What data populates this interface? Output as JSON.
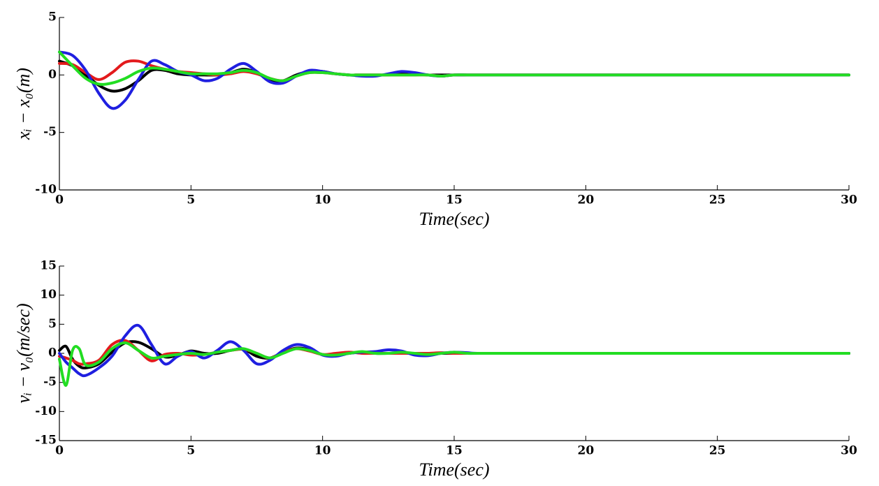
{
  "chart_data": [
    {
      "type": "line",
      "xlabel": "Time(sec)",
      "ylabel": "xᵢ − x₀(m)",
      "x": [
        0,
        0.5,
        1,
        1.5,
        2,
        2.5,
        3,
        3.5,
        4,
        4.5,
        5,
        5.5,
        6,
        6.5,
        7,
        7.5,
        8,
        8.5,
        9,
        9.5,
        10,
        10.5,
        11,
        11.5,
        12,
        12.5,
        13,
        13.5,
        14,
        14.5,
        15,
        15.5,
        16,
        18,
        20,
        22,
        24,
        26,
        28,
        30
      ],
      "xlim": [
        0,
        30
      ],
      "ylim": [
        -10,
        5
      ],
      "xticks": [
        0,
        5,
        10,
        15,
        20,
        25,
        30
      ],
      "yticks": [
        -10,
        -5,
        0,
        5
      ],
      "series": [
        {
          "color": "#000000",
          "values": [
            1.2,
            0.8,
            0,
            -0.9,
            -1.4,
            -1.2,
            -0.5,
            0.4,
            0.4,
            0.1,
            0,
            0,
            0,
            0.2,
            0.5,
            0.2,
            -0.4,
            -0.5,
            0,
            0.3,
            0.3,
            0.1,
            0,
            0,
            0,
            0,
            0.1,
            0.1,
            0,
            0,
            0,
            0,
            0,
            0,
            0,
            0,
            0,
            0,
            0,
            0
          ]
        },
        {
          "color": "#e31a1c",
          "values": [
            1.0,
            0.9,
            0.2,
            -0.4,
            0.2,
            1.1,
            1.2,
            0.8,
            0.5,
            0.3,
            0.2,
            0.1,
            0,
            0.1,
            0.3,
            0.1,
            -0.3,
            -0.5,
            -0.1,
            0.2,
            0.2,
            0.1,
            0,
            0,
            0,
            0,
            0,
            0,
            0,
            -0.1,
            0,
            0,
            0,
            0,
            0,
            0,
            0,
            0,
            0,
            0
          ]
        },
        {
          "color": "#1f1fe0",
          "values": [
            2.0,
            1.7,
            0.4,
            -1.6,
            -2.9,
            -2.2,
            -0.4,
            1.2,
            0.9,
            0.3,
            0,
            -0.5,
            -0.3,
            0.5,
            1.0,
            0.3,
            -0.6,
            -0.7,
            -0.1,
            0.4,
            0.3,
            0.1,
            0,
            -0.1,
            -0.1,
            0.1,
            0.3,
            0.2,
            0,
            -0.1,
            0,
            0,
            0,
            0,
            0,
            0,
            0,
            0,
            0,
            0
          ]
        },
        {
          "color": "#22dd22",
          "values": [
            2.0,
            0.8,
            -0.3,
            -0.8,
            -0.7,
            -0.3,
            0.3,
            0.6,
            0.5,
            0.3,
            0.1,
            0.1,
            0.1,
            0.2,
            0.4,
            0.2,
            -0.3,
            -0.5,
            -0.1,
            0.2,
            0.2,
            0.1,
            0,
            0,
            0,
            0,
            0,
            0,
            0,
            -0.1,
            0,
            0,
            0,
            0,
            0,
            0,
            0,
            0,
            0,
            0
          ]
        }
      ]
    },
    {
      "type": "line",
      "xlabel": "Time(sec)",
      "ylabel": "vᵢ − v₀(m/sec)",
      "x": [
        0,
        0.25,
        0.5,
        0.75,
        1,
        1.5,
        2,
        2.5,
        3,
        3.5,
        4,
        4.5,
        5,
        5.5,
        6,
        6.5,
        7,
        7.5,
        8,
        8.5,
        9,
        9.5,
        10,
        10.5,
        11,
        11.5,
        12,
        12.5,
        13,
        13.5,
        14,
        14.5,
        15,
        15.5,
        16,
        18,
        20,
        22,
        24,
        26,
        28,
        30
      ],
      "xlim": [
        0,
        30
      ],
      "ylim": [
        -15,
        15
      ],
      "xticks": [
        0,
        5,
        10,
        15,
        20,
        25,
        30
      ],
      "yticks": [
        -15,
        -10,
        -5,
        0,
        5,
        10,
        15
      ],
      "series": [
        {
          "color": "#000000",
          "values": [
            0.5,
            1.2,
            -1,
            -2.2,
            -2.5,
            -1.8,
            0.2,
            1.8,
            1.9,
            0.8,
            -0.6,
            -0.3,
            0.4,
            0,
            0,
            0.5,
            0.7,
            -0.5,
            -0.8,
            0.2,
            0.9,
            0.6,
            -0.2,
            -0.3,
            0,
            0.2,
            0,
            0,
            0,
            0,
            0,
            0,
            0,
            0,
            0,
            0,
            0,
            0,
            0,
            0,
            0,
            0
          ]
        },
        {
          "color": "#e31a1c",
          "values": [
            -0.5,
            -0.8,
            -1.2,
            -1.8,
            -1.8,
            -1.2,
            1.5,
            2.2,
            0.5,
            -1.3,
            -0.2,
            0,
            -0.3,
            -0.2,
            0.2,
            0.5,
            0.7,
            0,
            -0.8,
            0.2,
            0.8,
            0.4,
            -0.2,
            0,
            0.2,
            0,
            0,
            0,
            0,
            0,
            0,
            0.1,
            0,
            0,
            0,
            0,
            0,
            0,
            0,
            0,
            0,
            0
          ]
        },
        {
          "color": "#1f1fe0",
          "values": [
            0,
            -1.5,
            -2.5,
            -3.5,
            -3.8,
            -2.5,
            -0.5,
            3,
            4.8,
            1.5,
            -1.8,
            -0.5,
            0.3,
            -0.8,
            0.5,
            2.0,
            0.5,
            -1.8,
            -1.2,
            0.5,
            1.5,
            1.0,
            -0.3,
            -0.5,
            0,
            0.2,
            0.3,
            0.6,
            0.4,
            -0.3,
            -0.4,
            0,
            0.2,
            0.1,
            0,
            0,
            0,
            0,
            0,
            0,
            0,
            0
          ]
        },
        {
          "color": "#22dd22",
          "values": [
            -1,
            -5.5,
            0.5,
            0.8,
            -2,
            -1.5,
            0.8,
            1.8,
            0.5,
            -0.8,
            -0.5,
            -0.2,
            0,
            -0.2,
            0.2,
            0.5,
            0.8,
            0,
            -0.8,
            0,
            0.8,
            0.5,
            -0.2,
            -0.3,
            0,
            0.3,
            0,
            0,
            0.2,
            0,
            -0.2,
            0,
            0.2,
            0,
            0,
            0,
            0,
            0,
            0,
            0,
            0,
            0
          ]
        }
      ]
    }
  ]
}
